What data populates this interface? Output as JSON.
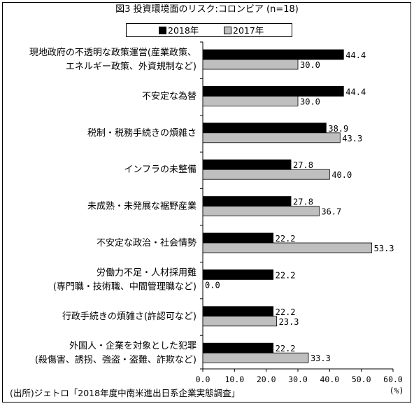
{
  "chart_data": {
    "type": "bar",
    "orientation": "horizontal",
    "title": "図3 投資環境面のリスク:コロンビア (n=18)",
    "categories": [
      [
        "現地政府の不透明な政策運営(産業政策、",
        "エネルギー政策、外資規制など)"
      ],
      [
        "不安定な為替"
      ],
      [
        "税制・税務手続きの煩雑さ"
      ],
      [
        "インフラの未整備"
      ],
      [
        "未成熟・未発展な裾野産業"
      ],
      [
        "不安定な政治・社会情勢"
      ],
      [
        "労働力不足・人材採用難",
        "(専門職・技術職、中間管理職など)"
      ],
      [
        "行政手続きの煩雑さ(許認可など)"
      ],
      [
        "外国人・企業を対象とした犯罪",
        "(殺傷害、誘拐、強盗・盗難、詐欺など)"
      ]
    ],
    "series": [
      {
        "name": "2018年",
        "color": "#000000",
        "values": [
          44.4,
          44.4,
          38.9,
          27.8,
          27.8,
          22.2,
          22.2,
          22.2,
          22.2
        ],
        "value_labels": [
          "44.4",
          "44.4",
          "38.9",
          "27.8",
          "27.8",
          "22.2",
          "22.2",
          "22.2",
          "22.2"
        ]
      },
      {
        "name": "2017年",
        "color": "#bfbfbf",
        "values": [
          30.0,
          30.0,
          43.3,
          40.0,
          36.7,
          53.3,
          0.0,
          23.3,
          33.3
        ],
        "value_labels": [
          "30.0",
          "30.0",
          "43.3",
          "40.0",
          "36.7",
          "53.3",
          "0.0",
          "23.3",
          "33.3"
        ]
      }
    ],
    "xlim": [
      0,
      60
    ],
    "xticks": [
      "0.0",
      "10.0",
      "20.0",
      "30.0",
      "40.0",
      "50.0",
      "60.0"
    ],
    "xunit": "(%)",
    "legend": "top",
    "grid": false
  },
  "source": "(出所)ジェトロ「2018年度中南米進出日系企業実態調査」"
}
